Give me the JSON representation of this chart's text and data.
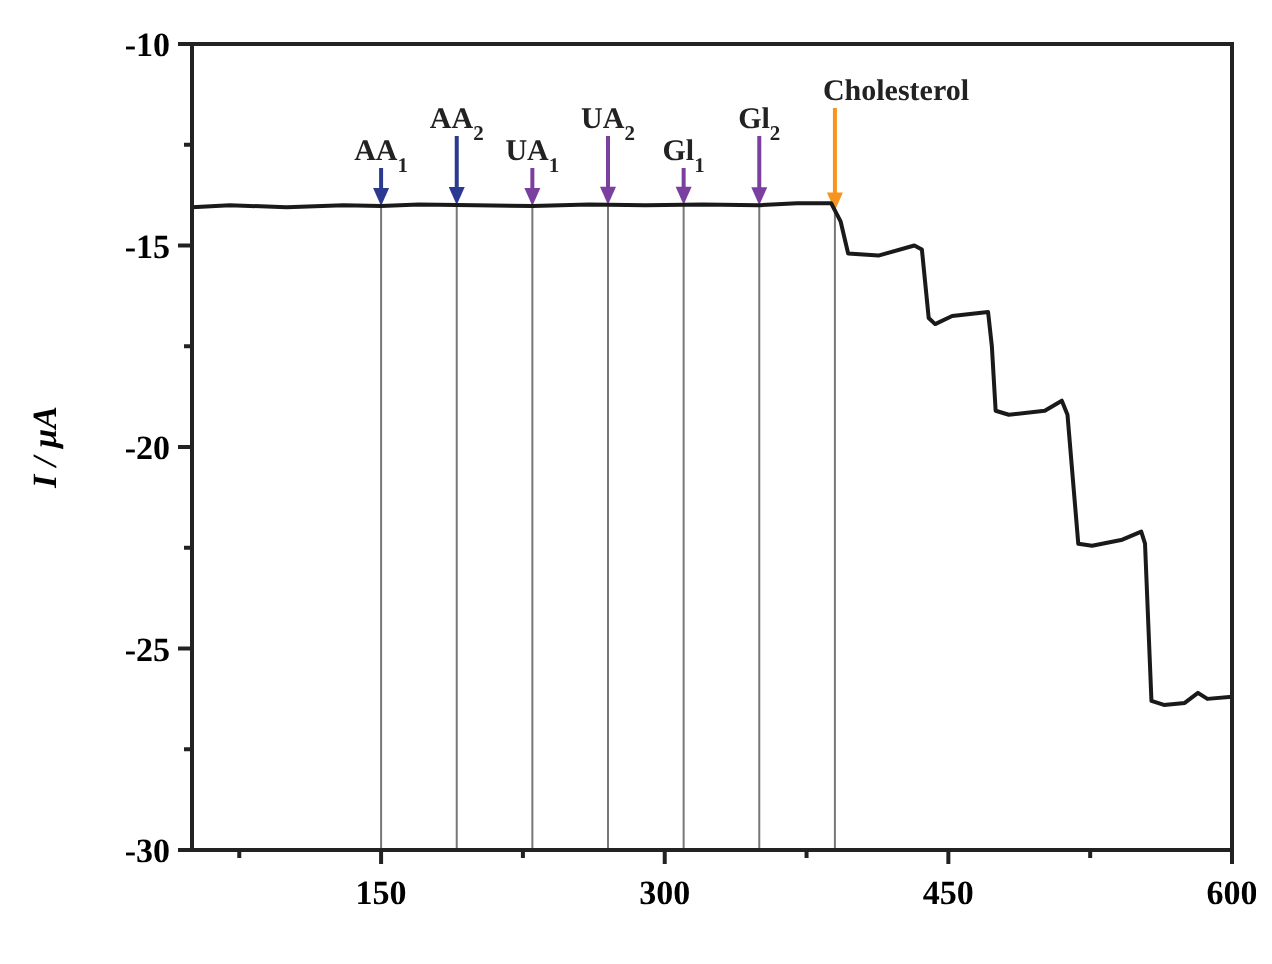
{
  "chart_data": {
    "type": "line",
    "ylabel": "I / µA",
    "xlim": [
      50,
      600
    ],
    "ylim": [
      -30,
      -10
    ],
    "xticks": [
      {
        "value": 75,
        "label": null
      },
      150,
      {
        "value": 225,
        "label": null
      },
      300,
      {
        "value": 375,
        "label": null
      },
      450,
      {
        "value": 525,
        "label": null
      },
      600
    ],
    "yticks": [
      -10,
      {
        "value": -12.5,
        "label": null
      },
      -15,
      {
        "value": -17.5,
        "label": null
      },
      -20,
      {
        "value": -22.5,
        "label": null
      },
      -25,
      {
        "value": -27.5,
        "label": null
      },
      -30
    ],
    "grid": false,
    "marker": "none",
    "line_style": "solid",
    "series": [
      {
        "color": "#1a1a1a",
        "x": [
          50,
          70,
          100,
          130,
          150,
          170,
          200,
          230,
          260,
          290,
          320,
          350,
          370,
          388,
          393,
          397,
          413,
          432,
          436,
          439.6,
          443,
          452,
          471,
          473,
          475,
          482,
          501,
          510,
          513,
          518.7,
          526,
          542,
          552,
          554,
          557.4,
          564,
          575,
          582,
          587,
          600
        ],
        "values": [
          -14.05,
          -14.0,
          -14.05,
          -14.0,
          -14.02,
          -13.98,
          -14.0,
          -14.02,
          -13.98,
          -14.0,
          -13.98,
          -14.0,
          -13.95,
          -13.95,
          -14.4,
          -15.2,
          -15.25,
          -15.0,
          -15.1,
          -16.8,
          -16.95,
          -16.75,
          -16.65,
          -17.5,
          -19.1,
          -19.2,
          -19.1,
          -18.85,
          -19.2,
          -22.4,
          -22.45,
          -22.3,
          -22.1,
          -22.4,
          -26.3,
          -26.4,
          -26.35,
          -26.1,
          -26.25,
          -26.2
        ]
      }
    ],
    "ref_lines": [
      {
        "axis": "x",
        "value": 150,
        "label": "AA$_{1}$",
        "color": "#777777"
      },
      {
        "axis": "x",
        "value": 190,
        "label": "AA$_{2}$",
        "color": "#777777"
      },
      {
        "axis": "x",
        "value": 230,
        "label": "UA$_{1}$",
        "color": "#777777"
      },
      {
        "axis": "x",
        "value": 270,
        "label": "UA$_{2}$",
        "color": "#777777"
      },
      {
        "axis": "x",
        "value": 310,
        "label": "Gl$_{1}$",
        "color": "#777777"
      },
      {
        "axis": "x",
        "value": 350,
        "label": "Gl$_{2}$",
        "color": "#777777"
      },
      {
        "axis": "x",
        "value": 390,
        "label": "Cholesterol",
        "color": "#777777"
      }
    ]
  }
}
